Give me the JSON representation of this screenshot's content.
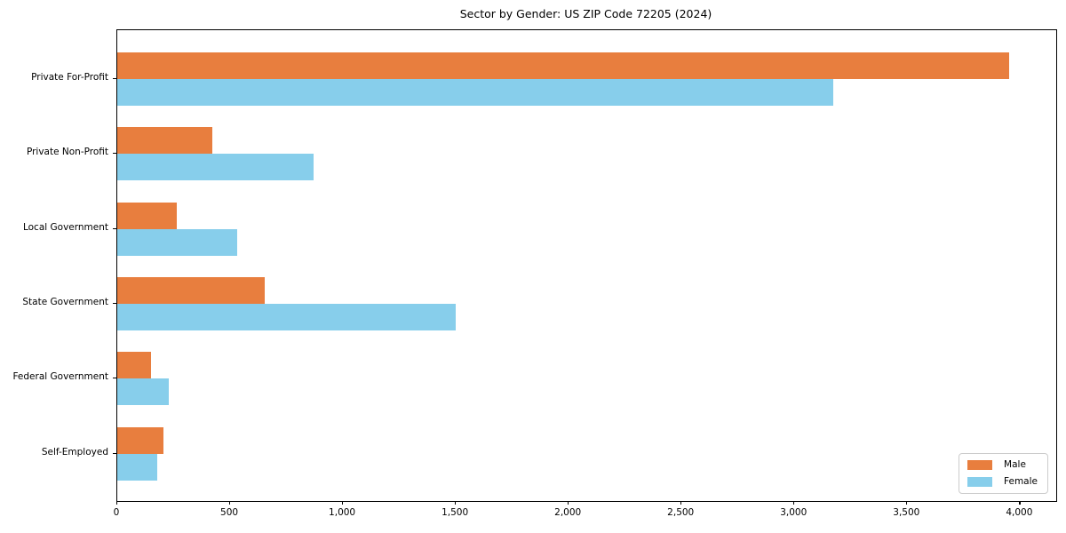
{
  "chart_data": {
    "type": "bar",
    "orientation": "horizontal",
    "title": "Sector by Gender: US ZIP Code 72205 (2024)",
    "categories": [
      "Private For-Profit",
      "Private Non-Profit",
      "Local Government",
      "State Government",
      "Federal Government",
      "Self-Employed"
    ],
    "series": [
      {
        "name": "Male",
        "color": "#E87E3E",
        "values": [
          3950,
          420,
          265,
          655,
          150,
          205
        ]
      },
      {
        "name": "Female",
        "color": "#87CEEB",
        "values": [
          3170,
          870,
          530,
          1500,
          230,
          175
        ]
      }
    ],
    "xlabel": "",
    "ylabel": "",
    "xlim": [
      0,
      4160
    ],
    "xticks": [
      0,
      500,
      1000,
      1500,
      2000,
      2500,
      3000,
      3500,
      4000
    ],
    "xtick_labels": [
      "0",
      "500",
      "1,000",
      "1,500",
      "2,000",
      "2,500",
      "3,000",
      "3,500",
      "4,000"
    ],
    "grid": false,
    "legend_position": "lower-right"
  }
}
